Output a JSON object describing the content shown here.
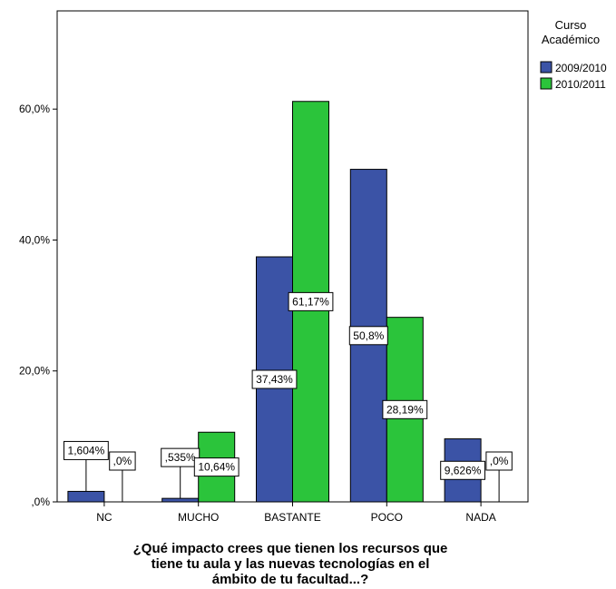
{
  "chart_data": {
    "type": "bar",
    "categories": [
      "NC",
      "MUCHO",
      "BASTANTE",
      "POCO",
      "NADA"
    ],
    "series": [
      {
        "name": "2009/2010",
        "color": "#3b53a6",
        "values": [
          1.604,
          0.535,
          37.43,
          50.8,
          9.626
        ],
        "labels": [
          "1,604%",
          ",535%",
          "37,43%",
          "50,8%",
          "9,626%"
        ]
      },
      {
        "name": "2010/2011",
        "color": "#2bc43b",
        "values": [
          0.0,
          10.64,
          61.17,
          28.19,
          0.0
        ],
        "labels": [
          ",0%",
          "10,64%",
          "61,17%",
          "28,19%",
          ",0%"
        ]
      }
    ],
    "ylim": [
      0,
      75
    ],
    "yticks": [
      0,
      20,
      40,
      60
    ],
    "ytick_labels": [
      ",0%",
      "20,0%",
      "40,0%",
      "60,0%"
    ],
    "xlabel": "¿Qué impacto crees que tienen los recursos que tiene tu aula y las nuevas tecnologías en el ámbito de tu facultad...?",
    "xlabel_lines": [
      "¿Qué impacto crees que tienen los recursos que",
      "tiene tu aula y las nuevas tecnologías en el",
      "ámbito de tu facultad...?"
    ],
    "legend": {
      "title_lines": [
        "Curso",
        "Académico"
      ],
      "position": "right"
    },
    "grid": false
  }
}
